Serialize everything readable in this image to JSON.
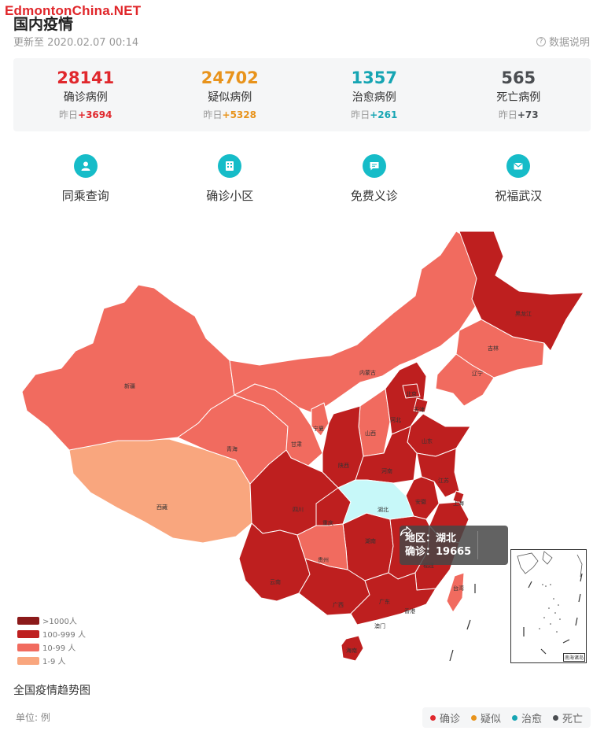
{
  "watermark": "EdmontonChina.NET",
  "page": {
    "title": "国内疫情",
    "updated": "更新至 2020.02.07 00:14",
    "data_note": "数据说明",
    "data_note_icon": "help-circle-icon"
  },
  "stats": [
    {
      "value": "28141",
      "label": "确诊病例",
      "delta_prefix": "昨日",
      "delta": "+3694",
      "color": "#e0282d"
    },
    {
      "value": "24702",
      "label": "疑似病例",
      "delta_prefix": "昨日",
      "delta": "+5328",
      "color": "#e8931b"
    },
    {
      "value": "1357",
      "label": "治愈病例",
      "delta_prefix": "昨日",
      "delta": "+261",
      "color": "#16a5b3"
    },
    {
      "value": "565",
      "label": "死亡病例",
      "delta_prefix": "昨日",
      "delta": "+73",
      "color": "#4a4d51"
    }
  ],
  "quick_links": [
    {
      "label": "同乘查询",
      "icon": "user-icon"
    },
    {
      "label": "确诊小区",
      "icon": "building-icon"
    },
    {
      "label": "免费义诊",
      "icon": "chat-icon"
    },
    {
      "label": "祝福武汉",
      "icon": "envelope-icon"
    }
  ],
  "map": {
    "levels": [
      {
        "label": ">1000人",
        "color": "#8b1a1a"
      },
      {
        "label": "100-999 人",
        "color": "#be1f1f"
      },
      {
        "label": "10-99 人",
        "color": "#f16b5f"
      },
      {
        "label": "1-9 人",
        "color": "#f9a67e"
      }
    ],
    "highlight_color": "#c7f8f9",
    "provinces": {
      "xinjiang": "新疆",
      "xizang": "西藏",
      "qinghai": "青海",
      "gansu": "甘肃",
      "neimenggu": "内蒙古",
      "heilongjiang": "黑龙江",
      "jilin": "吉林",
      "liaoning": "辽宁",
      "ningxia": "宁夏",
      "shanxi": "山西",
      "shaanxi": "陕西",
      "hebei": "河北",
      "beijing": "北京",
      "tianjin": "天津",
      "shandong": "山东",
      "henan": "河南",
      "jiangsu": "江苏",
      "anhui": "安徽",
      "shanghai": "上海",
      "hubei": "湖北",
      "sichuan": "四川",
      "chongqing": "重庆",
      "guizhou": "贵州",
      "yunnan": "云南",
      "hunan": "湖南",
      "fujian": "福建",
      "guangxi": "广西",
      "guangdong": "广东",
      "xianggang": "香港",
      "aomen": "澳门",
      "taiwan": "台湾",
      "hainan": "海南"
    },
    "tooltip": {
      "region": "地区：湖北",
      "confirmed": "确诊：19665",
      "share_icon": "share-icon"
    },
    "inset_label": "南海诸岛"
  },
  "trend": {
    "title": "全国疫情趋势图",
    "unit": "单位: 例",
    "series": [
      {
        "label": "确诊",
        "color": "#e0282d"
      },
      {
        "label": "疑似",
        "color": "#e8931b"
      },
      {
        "label": "治愈",
        "color": "#16a5b3"
      },
      {
        "label": "死亡",
        "color": "#4a4d51"
      }
    ]
  }
}
